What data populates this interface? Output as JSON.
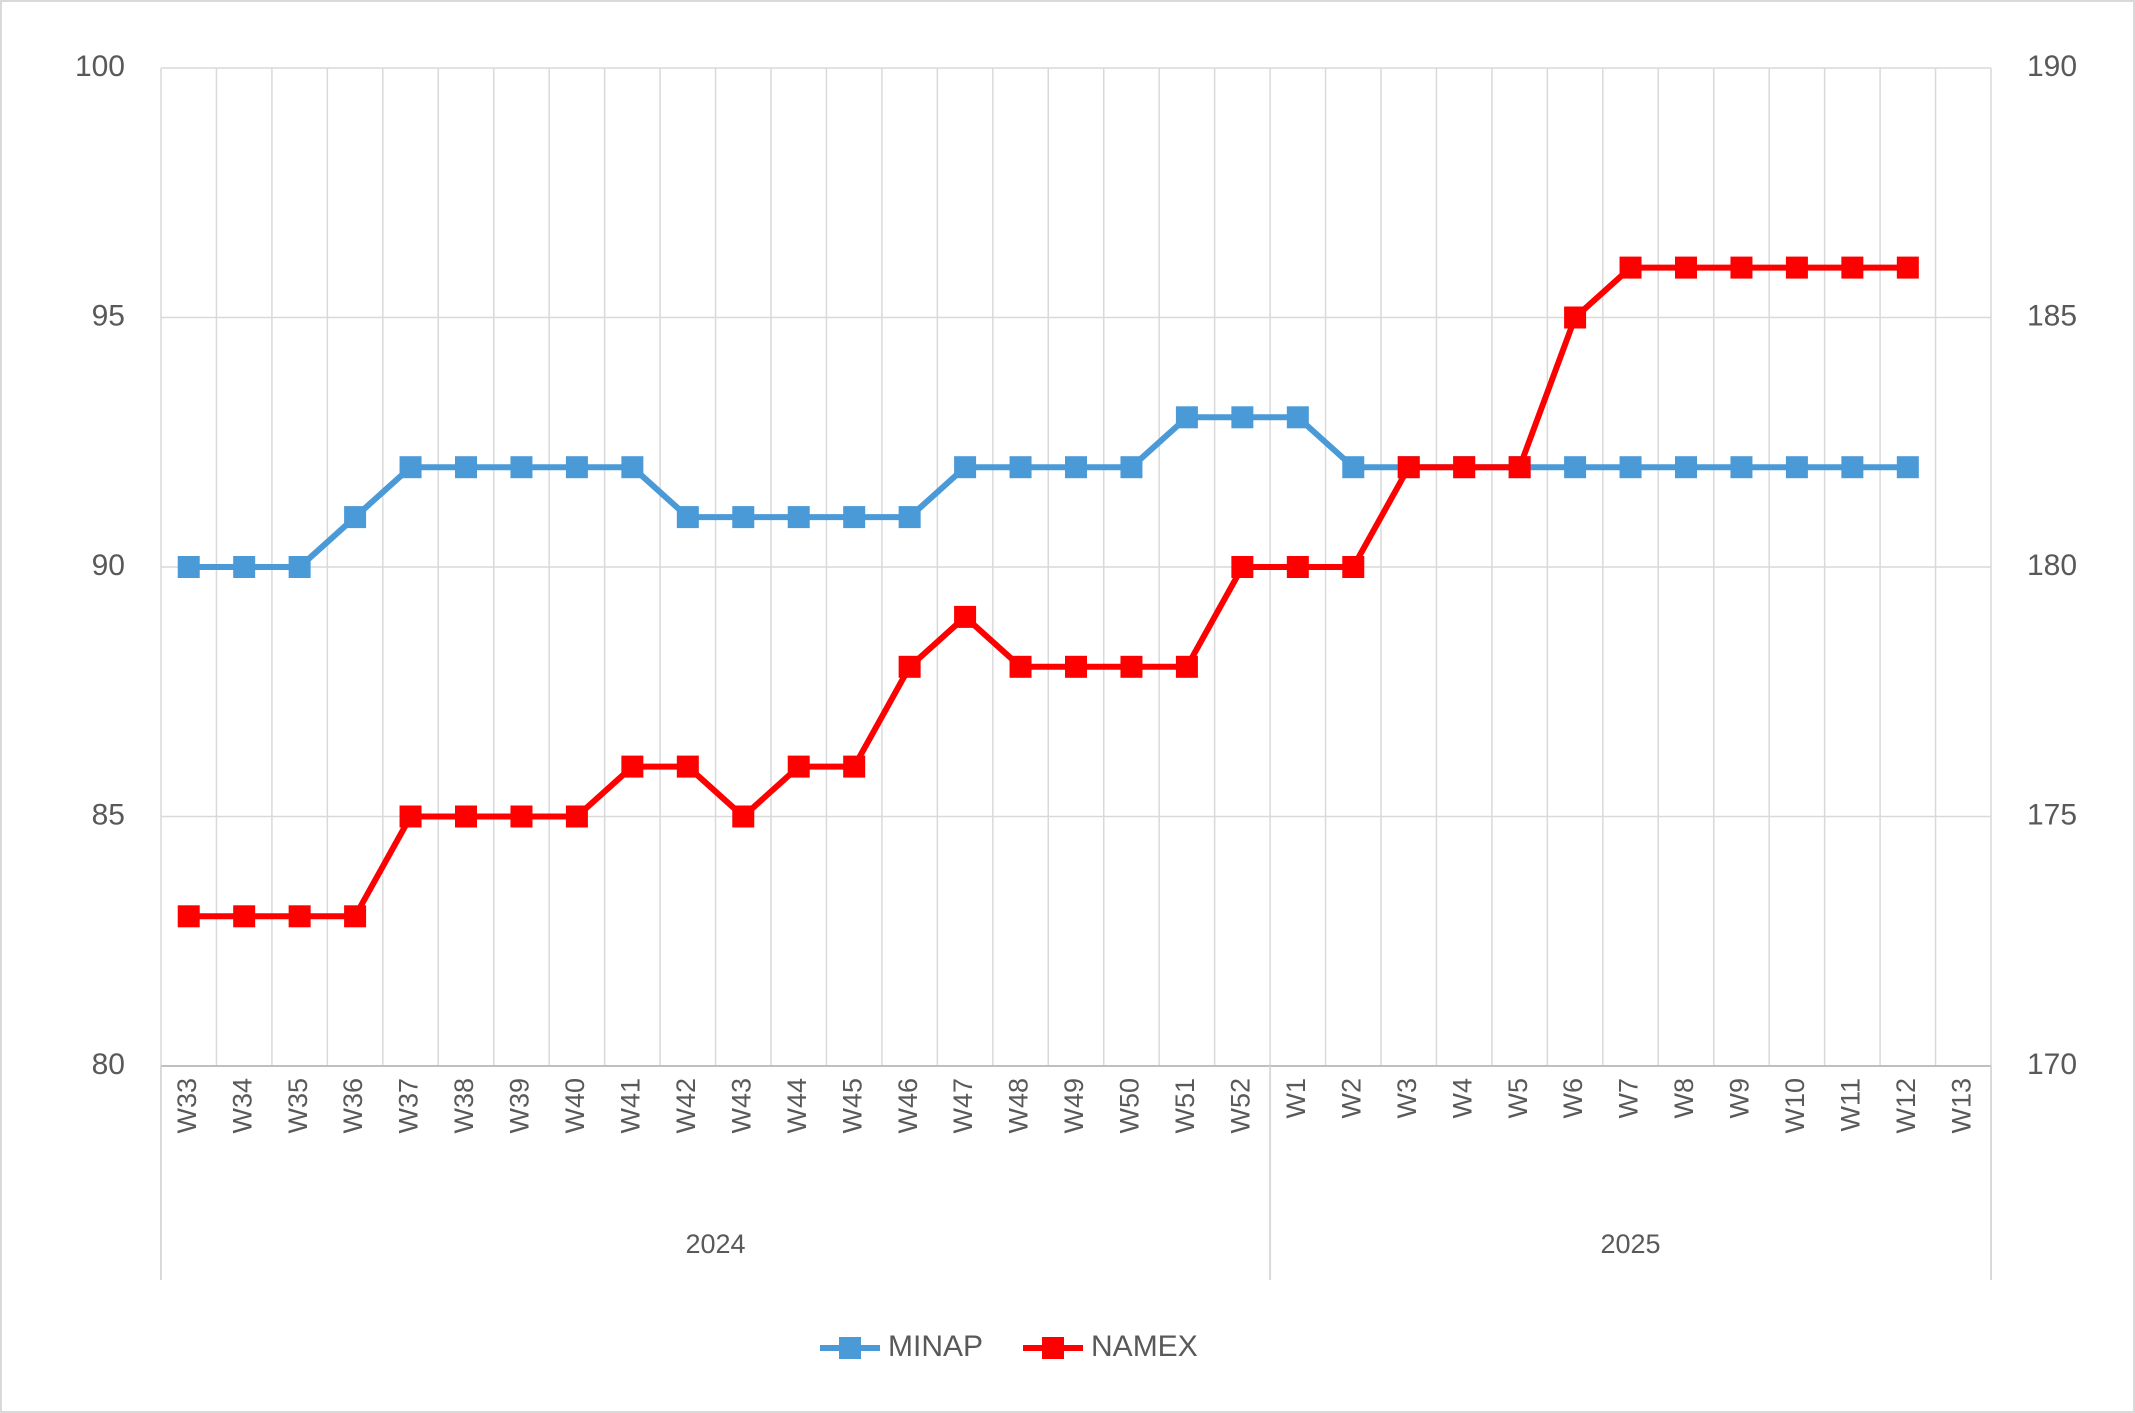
{
  "chart_data": {
    "type": "line",
    "categories": [
      "W33",
      "W34",
      "W35",
      "W36",
      "W37",
      "W38",
      "W39",
      "W40",
      "W41",
      "W42",
      "W43",
      "W44",
      "W45",
      "W46",
      "W47",
      "W48",
      "W49",
      "W50",
      "W51",
      "W52",
      "W1",
      "W2",
      "W3",
      "W4",
      "W5",
      "W6",
      "W7",
      "W8",
      "W9",
      "W10",
      "W11",
      "W12",
      "W13"
    ],
    "category_groups": [
      {
        "label": "2024",
        "span": 20
      },
      {
        "label": "2025",
        "span": 13
      }
    ],
    "series": [
      {
        "name": "MINAP",
        "color": "#4a9ad8",
        "values": [
          90,
          90,
          90,
          91,
          92,
          92,
          92,
          92,
          92,
          91,
          91,
          91,
          91,
          91,
          92,
          92,
          92,
          92,
          93,
          93,
          93,
          92,
          92,
          92,
          92,
          92,
          92,
          92,
          92,
          92,
          92,
          92,
          null
        ]
      },
      {
        "name": "NAMEX",
        "color": "#ff0000",
        "axis": "y2",
        "values": [
          173,
          173,
          173,
          173,
          175,
          175,
          175,
          175,
          176,
          176,
          175,
          176,
          176,
          178,
          179,
          178,
          178,
          178,
          178,
          180,
          180,
          180,
          182,
          182,
          182,
          185,
          186,
          186,
          186,
          186,
          186,
          186,
          null
        ]
      }
    ],
    "ylim": [
      80,
      100
    ],
    "yticks": [
      80,
      85,
      90,
      95,
      100
    ],
    "y2lim": [
      170,
      190
    ],
    "y2ticks": [
      170,
      175,
      180,
      185,
      190
    ],
    "grid": true,
    "legend": "bottom"
  }
}
